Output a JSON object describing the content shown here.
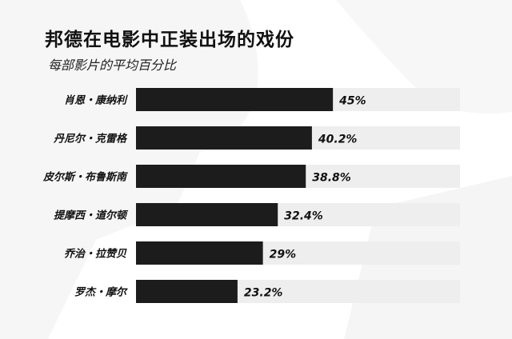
{
  "title": "邦德在电影中正装出场的戏份",
  "subtitle": "每部影片的平均百分比",
  "colors": {
    "bar": "#1c1c1c",
    "track": "#eeeeee",
    "text": "#111111",
    "background_art": "#f3f3f3"
  },
  "chart_data": {
    "type": "bar",
    "orientation": "horizontal",
    "title": "邦德在电影中正装出场的戏份",
    "subtitle": "每部影片的平均百分比",
    "categories": [
      "肖恩・康纳利",
      "丹尼尔・克雷格",
      "皮尔斯・布鲁斯南",
      "提摩西・道尔顿",
      "乔治・拉赞贝",
      "罗杰・摩尔"
    ],
    "values": [
      45,
      40.2,
      38.8,
      32.4,
      29,
      23.2
    ],
    "value_labels": [
      "45%",
      "40.2%",
      "38.8%",
      "32.4%",
      "29%",
      "23.2%"
    ],
    "xlim": [
      0,
      100
    ],
    "grid": false,
    "legend": "none"
  }
}
